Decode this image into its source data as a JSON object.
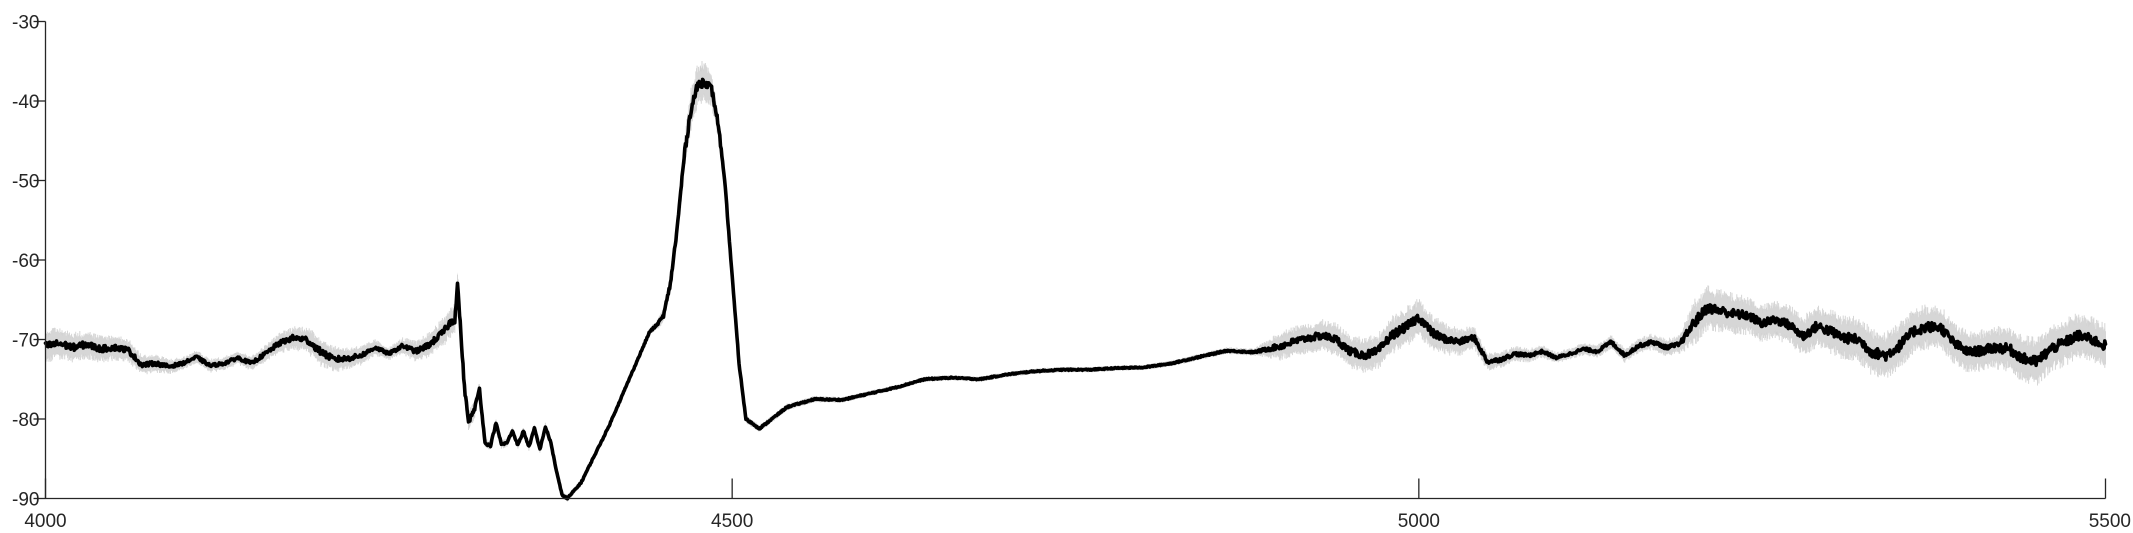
{
  "chart_data": {
    "type": "line",
    "title": "",
    "xlabel": "",
    "ylabel": "",
    "xlim": [
      4000,
      5500
    ],
    "ylim": [
      -90,
      -30
    ],
    "xticks": [
      4000,
      4500,
      5000,
      5500
    ],
    "yticks": [
      -90,
      -80,
      -70,
      -60,
      -50,
      -40,
      -30
    ],
    "xtick_labels": [
      "4000",
      "4500",
      "5000",
      "5500"
    ],
    "ytick_labels": [
      "-90",
      "-80",
      "-70",
      "-60",
      "-50",
      "-40",
      "-30"
    ],
    "grid": false,
    "legend": "none",
    "colors": {
      "mean": "#000000",
      "band": "#cfcfcf",
      "axis": "#262626"
    },
    "series": [
      {
        "role": "mean",
        "x": [
          4000,
          4010,
          4020,
          4030,
          4040,
          4050,
          4060,
          4070,
          4080,
          4090,
          4100,
          4110,
          4120,
          4130,
          4140,
          4150,
          4160,
          4170,
          4180,
          4190,
          4200,
          4210,
          4220,
          4230,
          4240,
          4250,
          4260,
          4270,
          4280,
          4290,
          4295,
          4298,
          4300,
          4302,
          4305,
          4308,
          4312,
          4316,
          4320,
          4324,
          4328,
          4332,
          4336,
          4340,
          4344,
          4348,
          4352,
          4356,
          4360,
          4364,
          4368,
          4372,
          4376,
          4380,
          4390,
          4400,
          4410,
          4420,
          4430,
          4440,
          4445,
          4450,
          4455,
          4460,
          4465,
          4470,
          4475,
          4480,
          4485,
          4490,
          4495,
          4500,
          4505,
          4510,
          4520,
          4540,
          4560,
          4580,
          4600,
          4620,
          4640,
          4660,
          4680,
          4700,
          4720,
          4740,
          4760,
          4780,
          4800,
          4820,
          4840,
          4860,
          4880,
          4900,
          4910,
          4920,
          4930,
          4940,
          4950,
          4960,
          4970,
          4980,
          4990,
          5000,
          5010,
          5020,
          5030,
          5040,
          5050,
          5060,
          5070,
          5080,
          5090,
          5100,
          5110,
          5120,
          5130,
          5140,
          5150,
          5160,
          5170,
          5180,
          5190,
          5200,
          5210,
          5220,
          5230,
          5240,
          5250,
          5260,
          5270,
          5280,
          5290,
          5300,
          5310,
          5320,
          5330,
          5340,
          5350,
          5360,
          5370,
          5380,
          5390,
          5400,
          5410,
          5420,
          5430,
          5440,
          5450,
          5460,
          5470,
          5480,
          5490,
          5500
        ],
        "y": [
          -70.8,
          -70.5,
          -71.0,
          -70.6,
          -71.2,
          -71.0,
          -71.3,
          -73.2,
          -73.0,
          -73.4,
          -73.0,
          -72.2,
          -73.3,
          -73.0,
          -72.3,
          -73.0,
          -71.8,
          -70.5,
          -69.8,
          -70.0,
          -71.5,
          -72.5,
          -72.4,
          -72.0,
          -71.0,
          -71.8,
          -70.8,
          -71.5,
          -70.6,
          -69.0,
          -67.8,
          -67.5,
          -63.0,
          -68.0,
          -76.0,
          -80.3,
          -79.0,
          -76.2,
          -83.0,
          -83.4,
          -80.5,
          -83.2,
          -83.0,
          -81.5,
          -83.3,
          -81.5,
          -83.5,
          -81.2,
          -83.8,
          -81.0,
          -83.0,
          -86.5,
          -89.5,
          -90.0,
          -88.0,
          -84.5,
          -81.0,
          -77.0,
          -73.0,
          -69.0,
          -68.2,
          -67.0,
          -63.0,
          -56.0,
          -47.0,
          -41.0,
          -38.0,
          -37.5,
          -38.5,
          -43.0,
          -51.0,
          -62.0,
          -73.0,
          -80.0,
          -81.2,
          -78.5,
          -77.5,
          -77.6,
          -76.8,
          -76.0,
          -75.0,
          -74.8,
          -75.0,
          -74.4,
          -74.0,
          -73.8,
          -73.8,
          -73.6,
          -73.5,
          -73.0,
          -72.2,
          -71.4,
          -71.6,
          -70.8,
          -70.2,
          -69.8,
          -69.5,
          -70.0,
          -71.5,
          -72.0,
          -71.5,
          -69.5,
          -68.5,
          -67.2,
          -69.2,
          -70.0,
          -70.3,
          -69.7,
          -72.8,
          -72.5,
          -71.8,
          -72.0,
          -71.5,
          -72.3,
          -71.8,
          -71.2,
          -71.5,
          -70.3,
          -72.0,
          -70.8,
          -70.3,
          -71.0,
          -70.6,
          -68.0,
          -66.0,
          -66.4,
          -66.8,
          -67.0,
          -68.0,
          -67.5,
          -68.2,
          -69.6,
          -68.3,
          -69.0,
          -69.8,
          -70.0,
          -71.6,
          -72.0,
          -70.8,
          -69.0,
          -68.4,
          -68.5,
          -70.5,
          -71.6,
          -71.4,
          -71.0,
          -71.2,
          -72.4,
          -72.8,
          -71.2,
          -70.4,
          -69.5,
          -70.0,
          -70.8
        ]
      },
      {
        "role": "band-halfwidth",
        "x": [
          4000,
          4050,
          4100,
          4150,
          4200,
          4250,
          4290,
          4300,
          4320,
          4340,
          4380,
          4430,
          4445,
          4460,
          4470,
          4480,
          4490,
          4500,
          4520,
          4600,
          4700,
          4800,
          4880,
          4900,
          4950,
          5000,
          5050,
          5100,
          5150,
          5190,
          5200,
          5250,
          5300,
          5350,
          5400,
          5450,
          5500
        ],
        "y": [
          1.8,
          1.4,
          0.7,
          0.8,
          1.6,
          0.7,
          1.6,
          1.8,
          0.5,
          0.5,
          0.4,
          0.3,
          0.5,
          1.5,
          2.3,
          2.3,
          1.5,
          0.5,
          0.4,
          0.3,
          0.3,
          0.3,
          0.4,
          1.6,
          1.8,
          2.2,
          1.0,
          0.6,
          0.8,
          1.0,
          2.5,
          2.0,
          2.4,
          2.6,
          2.2,
          2.6,
          2.4
        ]
      }
    ]
  }
}
